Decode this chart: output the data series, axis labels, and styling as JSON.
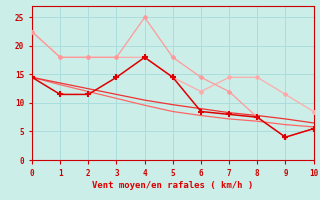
{
  "x": [
    0,
    1,
    2,
    3,
    4,
    5,
    6,
    7,
    8,
    9,
    10
  ],
  "line1": [
    22.5,
    18.0,
    18.0,
    18.0,
    18.0,
    14.5,
    12.0,
    14.5,
    14.5,
    11.5,
    8.5
  ],
  "line2": [
    22.5,
    18.0,
    18.0,
    18.0,
    25.0,
    18.0,
    14.5,
    12.0,
    7.5,
    4.0,
    5.5
  ],
  "line3": [
    14.5,
    11.5,
    11.5,
    14.5,
    18.0,
    14.5,
    8.5,
    8.0,
    7.5,
    4.0,
    5.5
  ],
  "line4": [
    14.5,
    13.2,
    12.0,
    10.8,
    9.6,
    8.5,
    7.8,
    7.2,
    6.8,
    6.2,
    5.8
  ],
  "line5": [
    14.5,
    13.5,
    12.5,
    11.5,
    10.5,
    9.7,
    9.0,
    8.3,
    7.8,
    7.2,
    6.5
  ],
  "color1": "#ffaaaa",
  "color2": "#ffaaaa",
  "color3": "#dd0000",
  "color4": "#ff6666",
  "color5": "#ee3333",
  "xlabel": "Vent moyen/en rafales ( km/h )",
  "xlabel_color": "#dd0000",
  "bg_color": "#cceee8",
  "grid_color": "#aadddd",
  "tick_color": "#cc0000",
  "spine_color": "#cc0000",
  "ylim": [
    0,
    27
  ],
  "xlim": [
    0,
    10
  ],
  "yticks": [
    0,
    5,
    10,
    15,
    20,
    25
  ],
  "xticks": [
    0,
    1,
    2,
    3,
    4,
    5,
    6,
    7,
    8,
    9,
    10
  ]
}
